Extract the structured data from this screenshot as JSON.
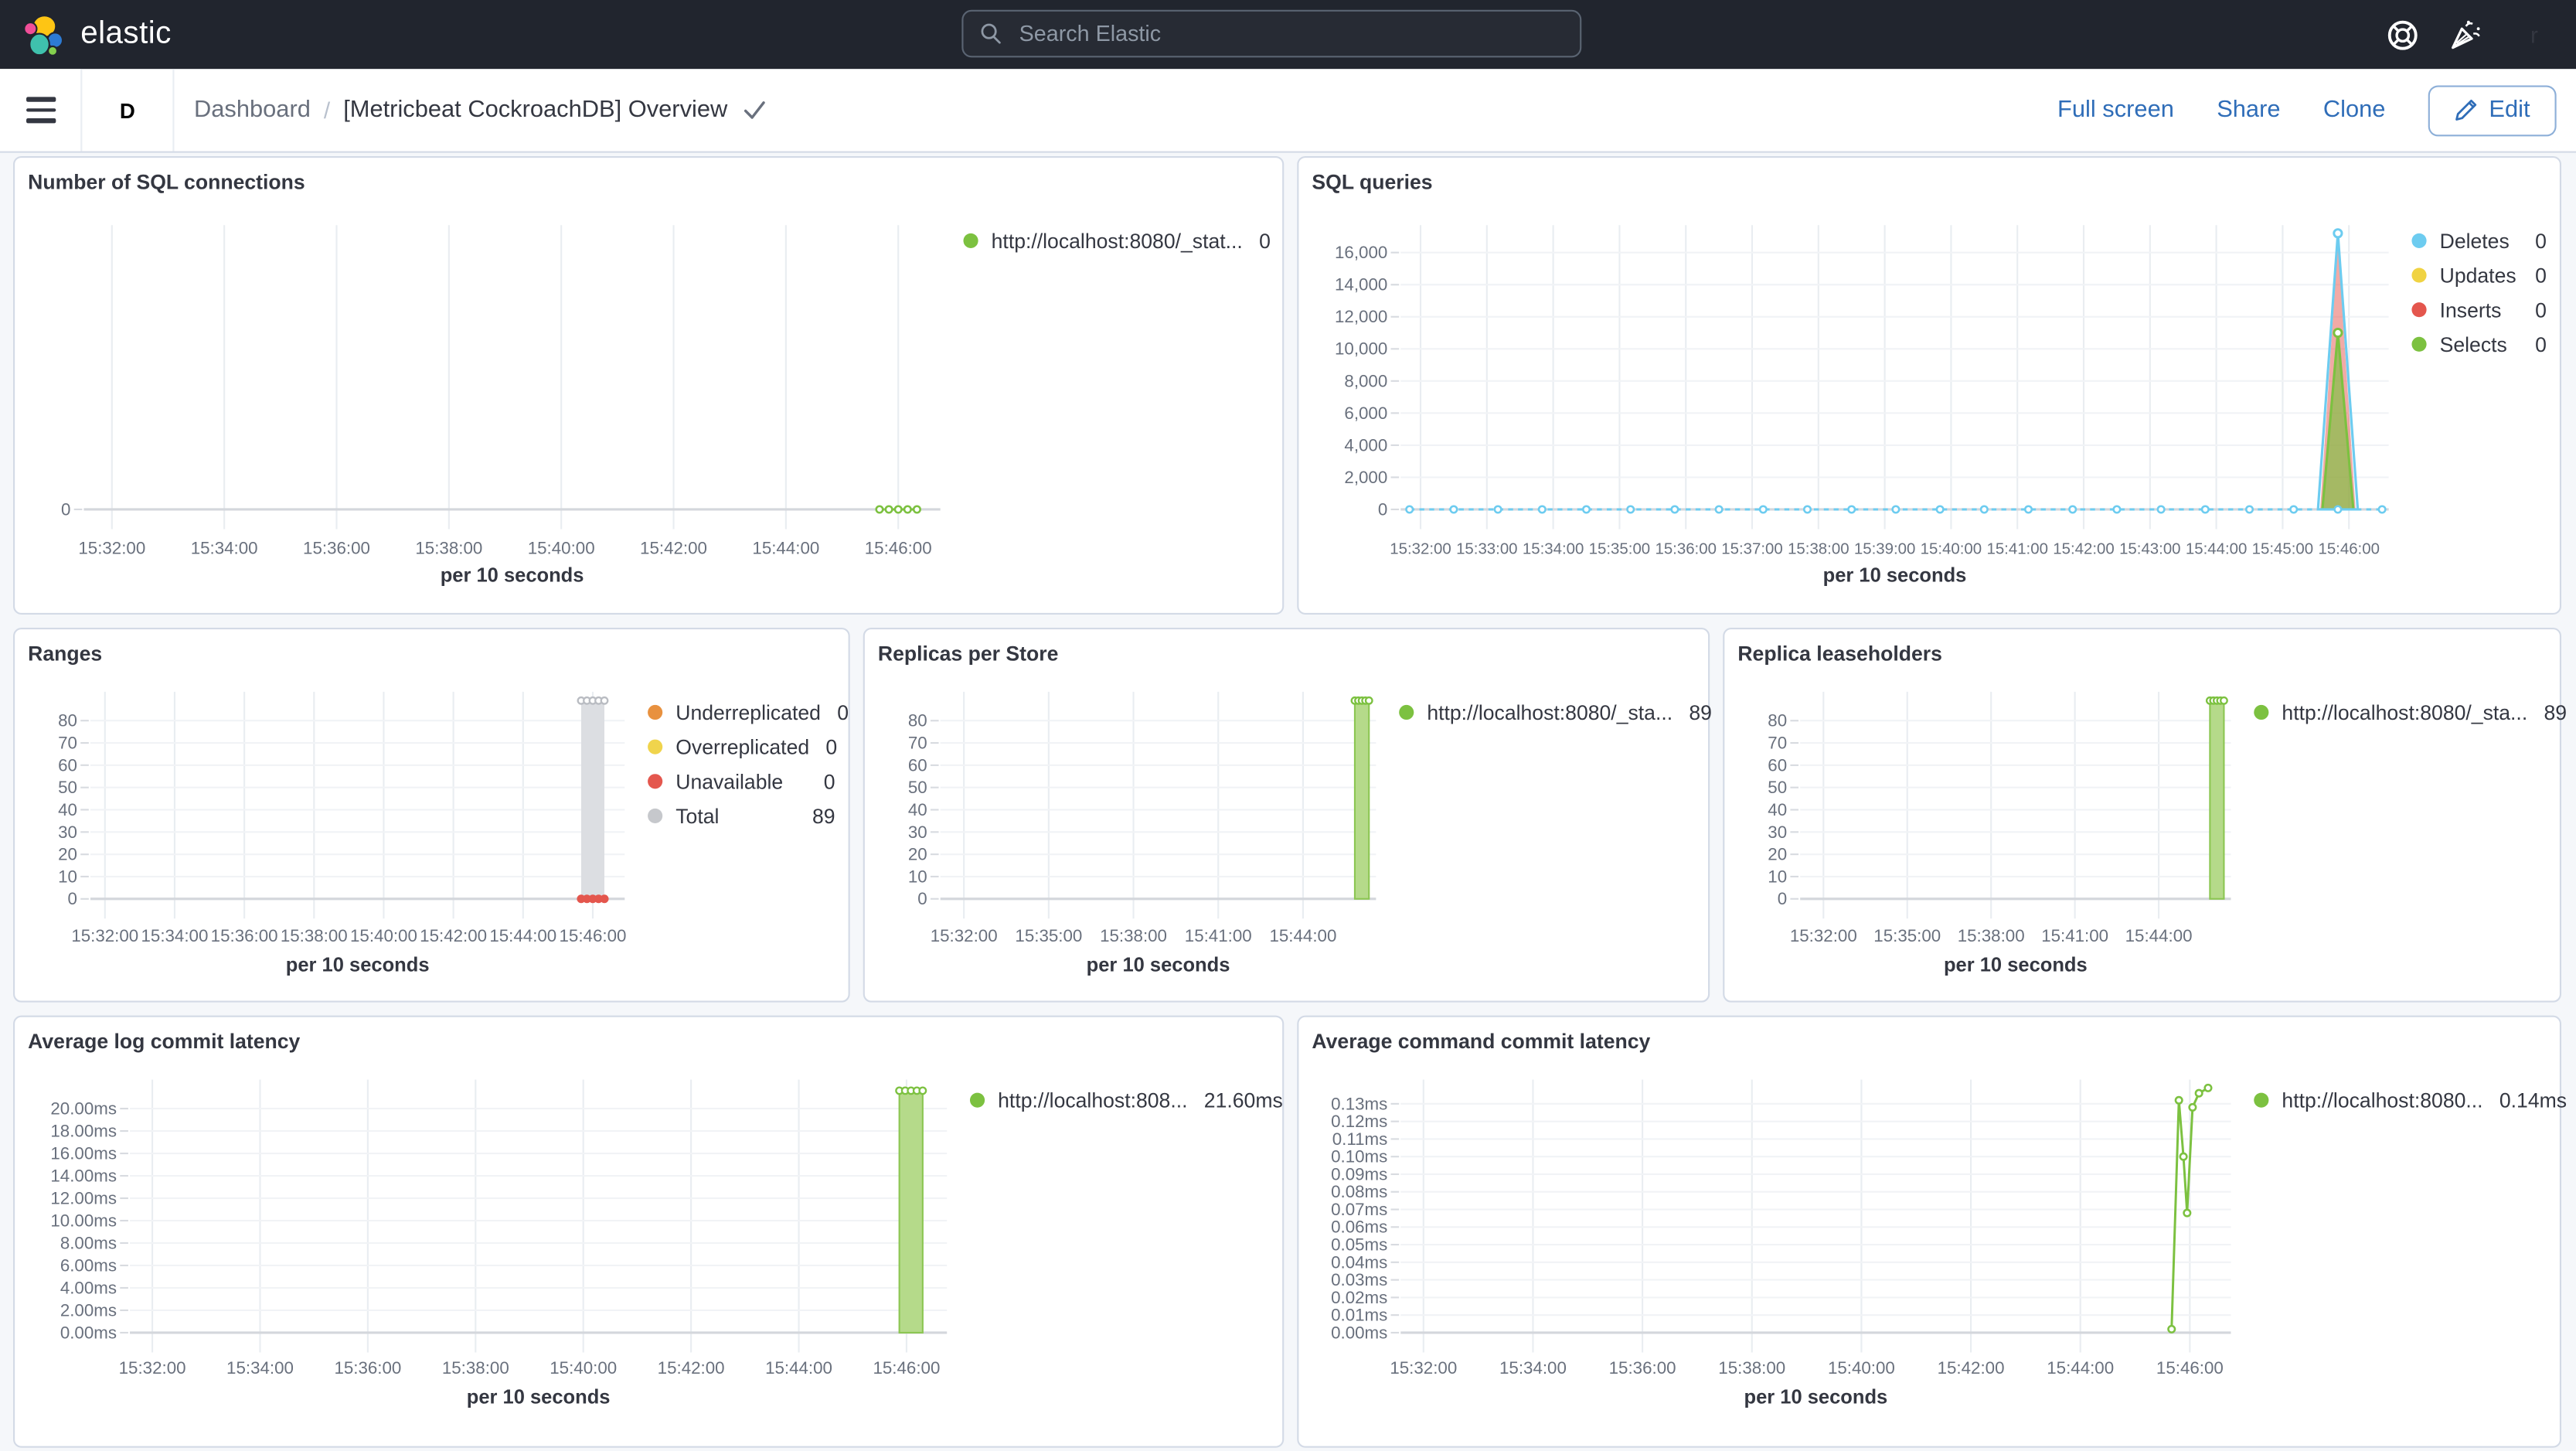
{
  "topbar": {
    "logo": "elastic",
    "search_placeholder": "Search Elastic",
    "avatar_initial": "r"
  },
  "navbar": {
    "space_badge": "D",
    "breadcrumb_root": "Dashboard",
    "breadcrumb_sep": "/",
    "breadcrumb_current": "[Metricbeat CockroachDB] Overview",
    "actions": {
      "full_screen": "Full screen",
      "share": "Share",
      "clone": "Clone",
      "edit": "Edit"
    }
  },
  "colors": {
    "topbar_bg": "#21252e",
    "accent_blue": "#2f6db8",
    "badge_teal": "#4fbda5",
    "notification_pink": "#ec2d6e",
    "avatar_bg": "#c9b0e4",
    "green": "#7cc140",
    "green_fill": "#b5da8a",
    "blue": "#6dccf0",
    "yellow": "#f0d343",
    "red": "#e4564d",
    "orange": "#e8913f",
    "gray": "#c6c8cc",
    "gray_fill": "#dcdee2"
  },
  "chart_data": [
    {
      "panel": "Number of SQL connections",
      "slug": "sql-connections",
      "type": "line",
      "x_title": "per 10 seconds",
      "x_ticks": [
        "15:32:00",
        "15:34:00",
        "15:36:00",
        "15:38:00",
        "15:40:00",
        "15:42:00",
        "15:44:00",
        "15:46:00"
      ],
      "y_ticks": [
        "0"
      ],
      "v_top": 10,
      "legend": [
        {
          "label": "http://localhost:8080/_stat...",
          "value": "0",
          "color": "#7cc140"
        }
      ],
      "series": [
        {
          "name": "connections",
          "type": "zeroline",
          "color": "#7cc140",
          "dash": true,
          "from": "15:45:40",
          "to": "15:46:20",
          "every_s": 10,
          "value": 0
        }
      ]
    },
    {
      "panel": "SQL queries",
      "slug": "sql-queries",
      "type": "line",
      "x_title": "per 10 seconds",
      "x_ticks": [
        "15:32:00",
        "15:33:00",
        "15:34:00",
        "15:35:00",
        "15:36:00",
        "15:37:00",
        "15:38:00",
        "15:39:00",
        "15:40:00",
        "15:41:00",
        "15:42:00",
        "15:43:00",
        "15:44:00",
        "15:45:00",
        "15:46:00"
      ],
      "y_ticks": [
        "0",
        "2,000",
        "4,000",
        "6,000",
        "8,000",
        "10,000",
        "12,000",
        "14,000",
        "16,000"
      ],
      "v_top": 17300,
      "legend": [
        {
          "label": "Deletes",
          "value": "0",
          "color": "#6dccf0"
        },
        {
          "label": "Updates",
          "value": "0",
          "color": "#f0d343"
        },
        {
          "label": "Inserts",
          "value": "0",
          "color": "#e4564d"
        },
        {
          "label": "Selects",
          "value": "0",
          "color": "#7cc140"
        }
      ],
      "series": [
        {
          "name": "Inserts spike",
          "type": "area",
          "fill": "rgba(228,86,77,0.5)",
          "points": [
            [
              "15:45:34",
              0
            ],
            [
              "15:45:50",
              16600
            ],
            [
              "15:46:06",
              0
            ]
          ]
        },
        {
          "name": "Selects spike",
          "type": "area",
          "fill": "rgba(124,193,64,0.65)",
          "stroke": "#7cc140",
          "marker": "#7cc140",
          "points": [
            [
              "15:45:36",
              0
            ],
            [
              "15:45:50",
              11000
            ],
            [
              "15:46:04",
              0
            ]
          ]
        },
        {
          "name": "Deletes spike",
          "type": "area",
          "fill": "none",
          "stroke": "#6dccf0",
          "marker": "#6dccf0",
          "points": [
            [
              "15:45:32",
              0
            ],
            [
              "15:45:50",
              17200
            ],
            [
              "15:46:08",
              0
            ]
          ]
        },
        {
          "name": "baseline",
          "type": "zeroline",
          "color": "#6dccf0",
          "dash": true,
          "from": "15:31:50",
          "to": "15:46:30",
          "every_s": 40,
          "value": 0
        }
      ]
    },
    {
      "panel": "Ranges",
      "slug": "ranges",
      "type": "bar",
      "x_title": "per 10 seconds",
      "x_ticks": [
        "15:32:00",
        "15:34:00",
        "15:36:00",
        "15:38:00",
        "15:40:00",
        "15:42:00",
        "15:44:00",
        "15:46:00"
      ],
      "y_ticks": [
        "0",
        "10",
        "20",
        "30",
        "40",
        "50",
        "60",
        "70",
        "80"
      ],
      "v_top": 90,
      "legend": [
        {
          "label": "Underreplicated",
          "value": "0",
          "color": "#e8913f"
        },
        {
          "label": "Overreplicated",
          "value": "0",
          "color": "#f0d44c"
        },
        {
          "label": "Unavailable",
          "value": "0",
          "color": "#e4574e"
        },
        {
          "label": "Total",
          "value": "89",
          "color": "#c6c8cc"
        }
      ],
      "series": [
        {
          "name": "Total",
          "type": "bar",
          "t1": "15:45:40",
          "t2": "15:46:20",
          "v": 89,
          "fill": "#dcdee2",
          "marker": "#b9bcc2"
        },
        {
          "name": "Unavailable",
          "type": "zeroline",
          "color": "#e4564d",
          "solid_markers": true,
          "from": "15:45:40",
          "to": "15:46:20",
          "every_s": 10,
          "value": 0
        }
      ]
    },
    {
      "panel": "Replicas per Store",
      "slug": "replicas-per-store",
      "type": "bar",
      "x_title": "per 10 seconds",
      "x_ticks": [
        "15:32:00",
        "15:35:00",
        "15:38:00",
        "15:41:00",
        "15:44:00"
      ],
      "y_ticks": [
        "0",
        "10",
        "20",
        "30",
        "40",
        "50",
        "60",
        "70",
        "80"
      ],
      "v_top": 90,
      "legend": [
        {
          "label": "http://localhost:8080/_sta...",
          "value": "89",
          "color": "#7cc140"
        }
      ],
      "series": [
        {
          "name": "replicas",
          "type": "bar",
          "t1": "15:45:50",
          "t2": "15:46:20",
          "v": 89,
          "fill": "#b5da8a",
          "stroke": "#8cc653",
          "marker": "#7cc140"
        }
      ]
    },
    {
      "panel": "Replica leaseholders",
      "slug": "replica-leaseholders",
      "type": "bar",
      "x_title": "per 10 seconds",
      "x_ticks": [
        "15:32:00",
        "15:35:00",
        "15:38:00",
        "15:41:00",
        "15:44:00"
      ],
      "y_ticks": [
        "0",
        "10",
        "20",
        "30",
        "40",
        "50",
        "60",
        "70",
        "80"
      ],
      "v_top": 90,
      "legend": [
        {
          "label": "http://localhost:8080/_sta...",
          "value": "89",
          "color": "#7cc140"
        }
      ],
      "series": [
        {
          "name": "leaseholders",
          "type": "bar",
          "t1": "15:45:50",
          "t2": "15:46:20",
          "v": 89,
          "fill": "#b5da8a",
          "stroke": "#8cc653",
          "marker": "#7cc140"
        }
      ]
    },
    {
      "panel": "Average log commit latency",
      "slug": "avg-log-commit-latency",
      "type": "bar",
      "x_title": "per 10 seconds",
      "x_ticks": [
        "15:32:00",
        "15:34:00",
        "15:36:00",
        "15:38:00",
        "15:40:00",
        "15:42:00",
        "15:44:00",
        "15:46:00"
      ],
      "y_ticks": [
        "0.00ms",
        "2.00ms",
        "4.00ms",
        "6.00ms",
        "8.00ms",
        "10.00ms",
        "12.00ms",
        "14.00ms",
        "16.00ms",
        "18.00ms",
        "20.00ms"
      ],
      "v_top": 22,
      "legend": [
        {
          "label": "http://localhost:808...",
          "value": "21.60ms",
          "color": "#7cc140"
        }
      ],
      "series": [
        {
          "name": "log commit latency",
          "type": "bar",
          "t1": "15:45:52",
          "t2": "15:46:18",
          "v": 21.6,
          "fill": "#b5da8a",
          "stroke": "#8cc653",
          "marker": "#7cc140"
        }
      ]
    },
    {
      "panel": "Average command commit latency",
      "slug": "avg-command-commit-latency",
      "type": "line",
      "x_title": "per 10 seconds",
      "x_ticks": [
        "15:32:00",
        "15:34:00",
        "15:36:00",
        "15:38:00",
        "15:40:00",
        "15:42:00",
        "15:44:00",
        "15:46:00"
      ],
      "y_ticks": [
        "0.00ms",
        "0.01ms",
        "0.02ms",
        "0.03ms",
        "0.04ms",
        "0.05ms",
        "0.06ms",
        "0.07ms",
        "0.08ms",
        "0.09ms",
        "0.10ms",
        "0.11ms",
        "0.12ms",
        "0.13ms"
      ],
      "v_top": 0.14,
      "legend": [
        {
          "label": "http://localhost:8080...",
          "value": "0.14ms",
          "color": "#7cc140"
        }
      ],
      "series": [
        {
          "name": "command commit latency",
          "type": "line",
          "color": "#7cc140",
          "points": [
            [
              "15:45:40",
              0.002
            ],
            [
              "15:45:48",
              0.132
            ],
            [
              "15:45:53",
              0.1
            ],
            [
              "15:45:57",
              0.068
            ],
            [
              "15:46:03",
              0.128
            ],
            [
              "15:46:10",
              0.136
            ],
            [
              "15:46:20",
              0.139
            ]
          ]
        }
      ]
    }
  ]
}
